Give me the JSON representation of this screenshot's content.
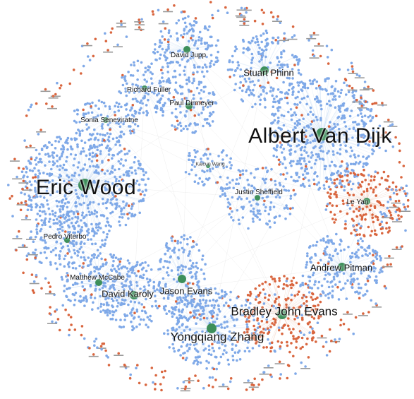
{
  "network": {
    "node_colors": {
      "primary": "#7fa9e8",
      "secondary": "#d9663f",
      "hub": "#3d8f5a"
    },
    "labels": [
      "Albert Van Dijk",
      "Eric Wood",
      "Yongqiang Zhang",
      "Bradley John Evans",
      "Stuart Phinn",
      "Andrew Pitman",
      "David Jupp",
      "Paul Dirmeyer",
      "Richard Fuller",
      "Sonia Seneviratne",
      "Justin Sheffield",
      "Pedro Viterbo",
      "Matthew McCabe",
      "David Karoly",
      "Jason Evans",
      "Kaicun Wang",
      "Le Yan"
    ]
  }
}
